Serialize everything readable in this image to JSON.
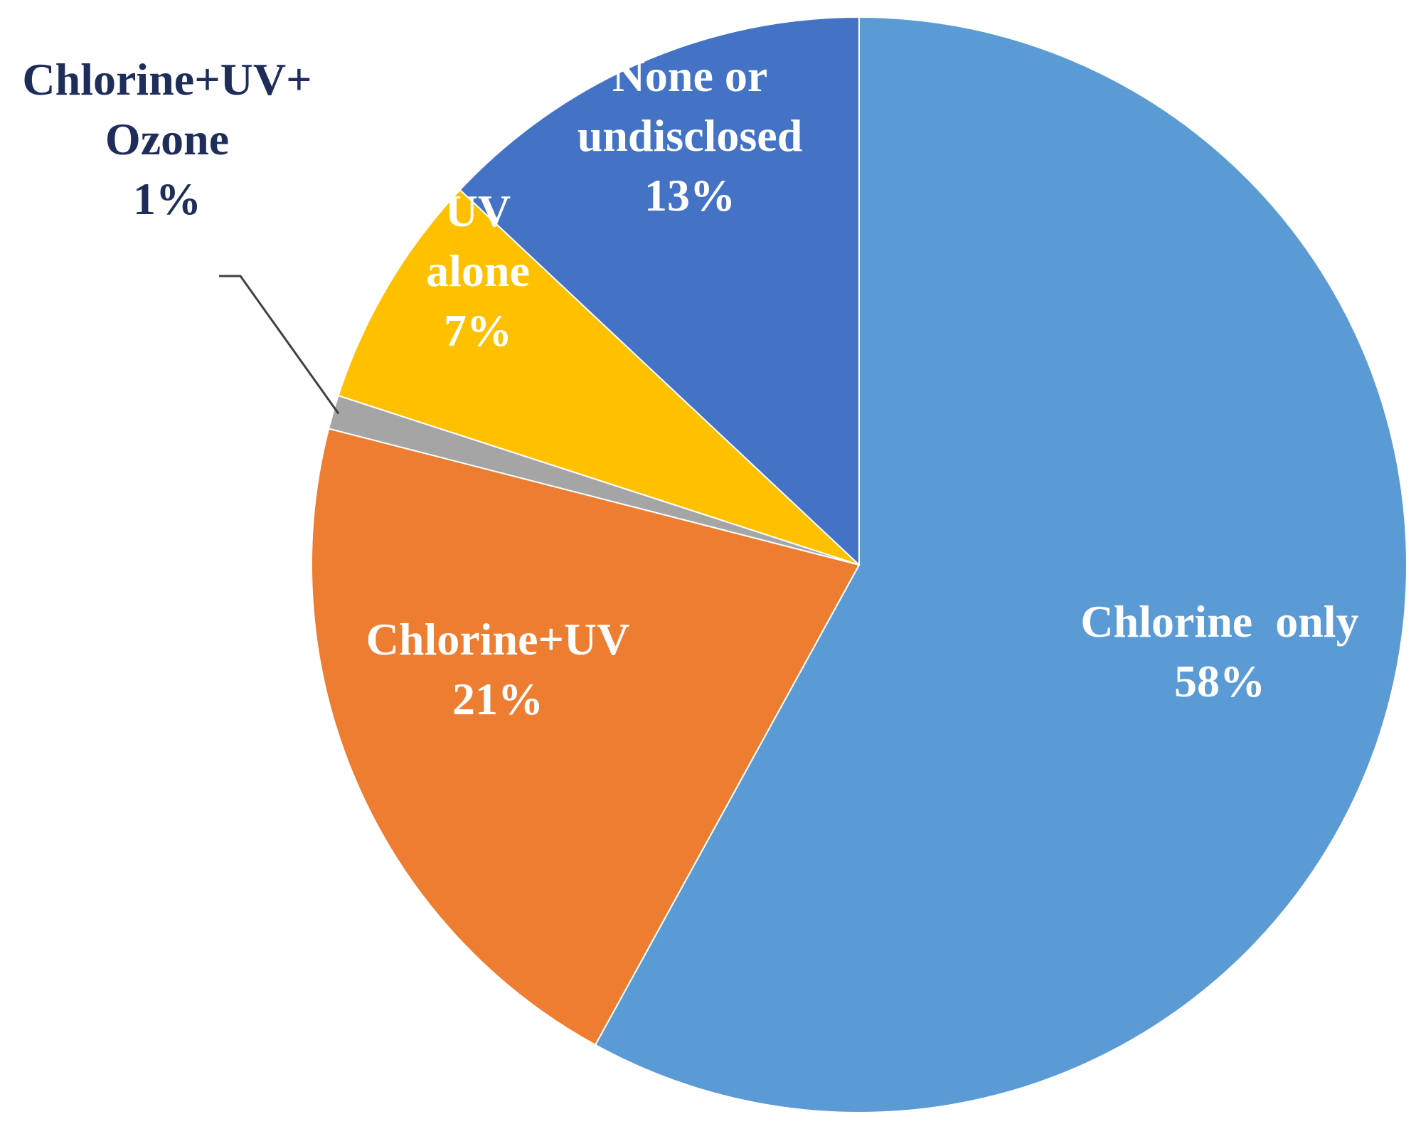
{
  "chart_data": {
    "type": "pie",
    "start_angle_deg": 0,
    "direction": "clockwise",
    "slices": [
      {
        "label_lines": [
          "Chlorine  only"
        ],
        "value_label": "58%",
        "value": 58,
        "color": "#5b9bd5"
      },
      {
        "label_lines": [
          "Chlorine+UV"
        ],
        "value_label": "21%",
        "value": 21,
        "color": "#ed7d31"
      },
      {
        "label_lines": [
          "Chlorine+UV+",
          "Ozone"
        ],
        "value_label": "1%",
        "value": 1,
        "color": "#a5a5a5"
      },
      {
        "label_lines": [
          "UV",
          "alone"
        ],
        "value_label": "7%",
        "value": 7,
        "color": "#ffc000"
      },
      {
        "label_lines": [
          "None or",
          "undisclosed"
        ],
        "value_label": "13%",
        "value": 13,
        "color": "#4472c4"
      }
    ]
  }
}
